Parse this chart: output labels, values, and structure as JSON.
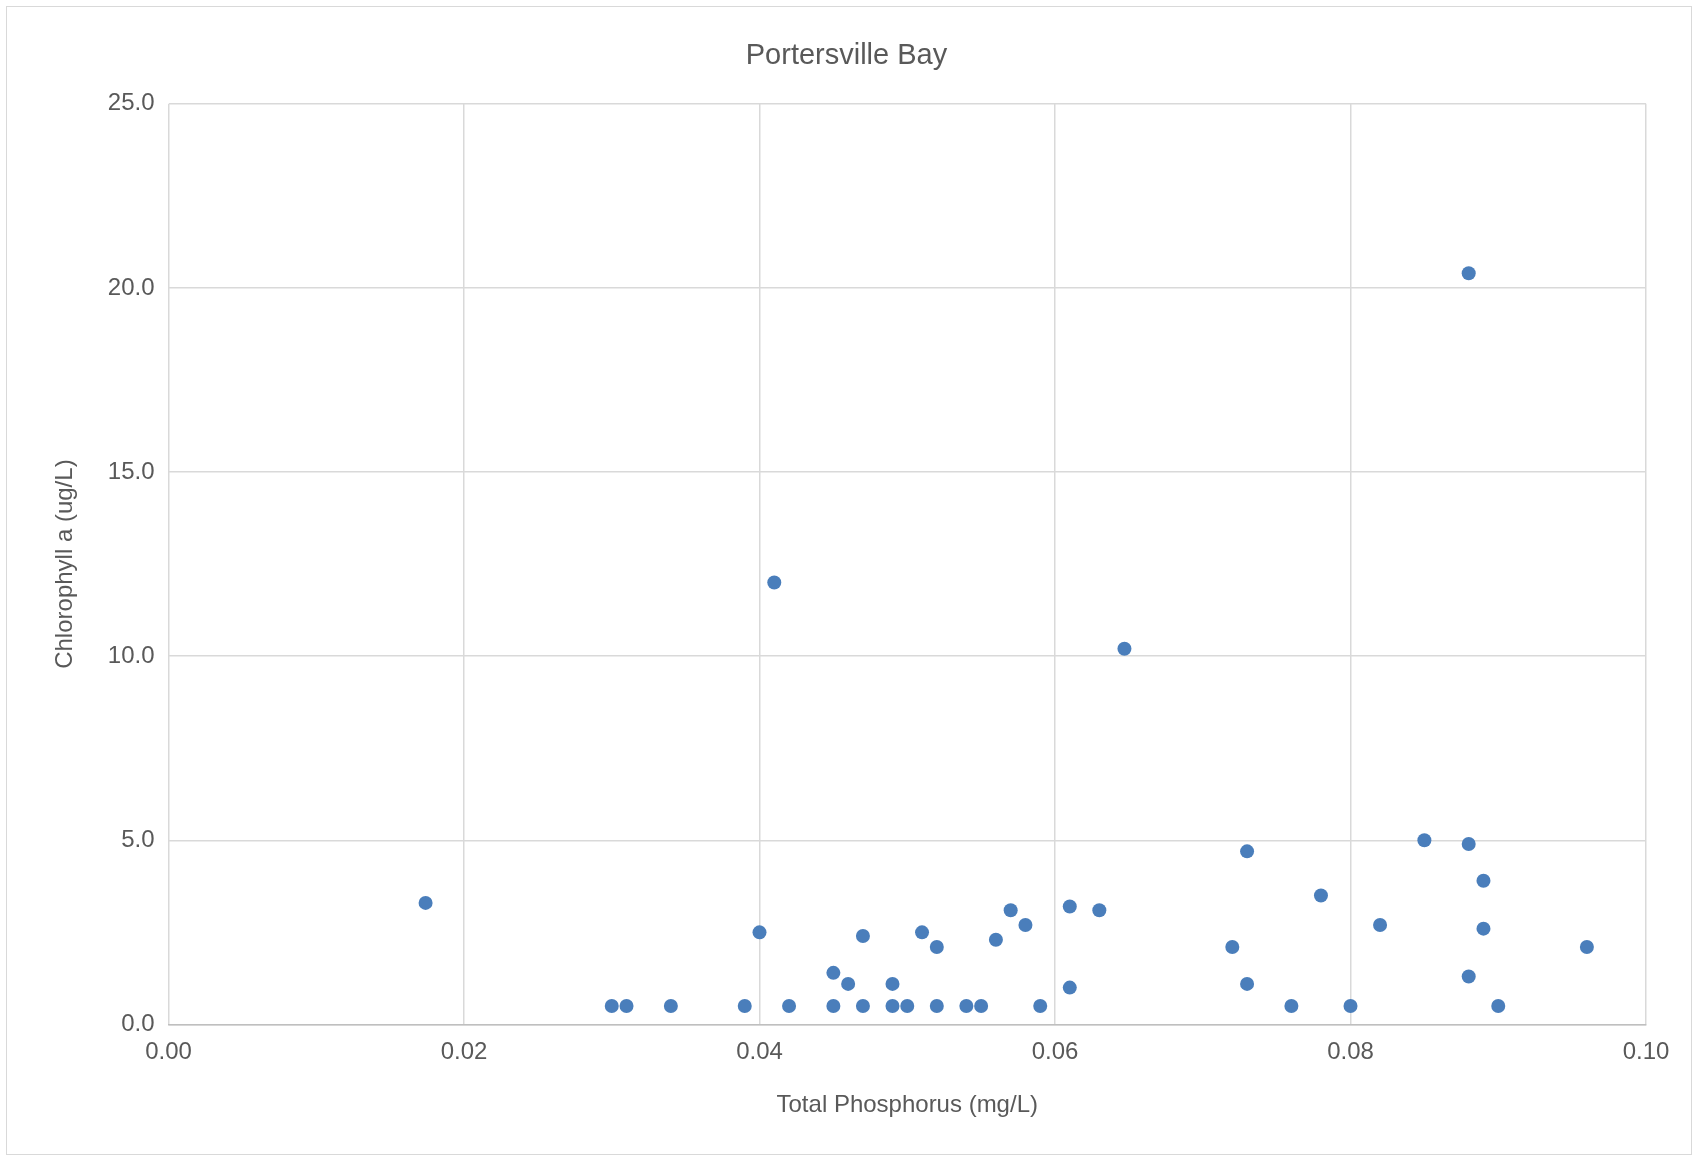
{
  "chart_data": {
    "type": "scatter",
    "title": "Portersville Bay",
    "xlabel": "Total Phosphorus (mg/L)",
    "ylabel": "Chlorophyll a (ug/L)",
    "x": [
      0.0174,
      0.03,
      0.031,
      0.034,
      0.039,
      0.04,
      0.041,
      0.042,
      0.045,
      0.045,
      0.046,
      0.047,
      0.047,
      0.049,
      0.049,
      0.05,
      0.051,
      0.052,
      0.052,
      0.054,
      0.055,
      0.056,
      0.057,
      0.058,
      0.059,
      0.061,
      0.061,
      0.063,
      0.0647,
      0.072,
      0.073,
      0.073,
      0.076,
      0.078,
      0.08,
      0.082,
      0.085,
      0.088,
      0.088,
      0.088,
      0.089,
      0.089,
      0.09,
      0.096
    ],
    "series": [
      {
        "color": "#4a7ebb",
        "values": [
          3.3,
          0.5,
          0.5,
          0.5,
          0.5,
          2.5,
          12.0,
          0.5,
          1.4,
          0.5,
          1.1,
          2.4,
          0.5,
          1.1,
          0.5,
          0.5,
          2.5,
          2.1,
          0.5,
          0.5,
          0.5,
          2.3,
          3.1,
          2.7,
          0.5,
          3.2,
          1.0,
          3.1,
          10.2,
          2.1,
          4.7,
          1.1,
          0.5,
          3.5,
          0.5,
          2.7,
          5.0,
          20.4,
          4.9,
          1.3,
          3.9,
          2.6,
          0.5,
          2.1
        ]
      }
    ],
    "xlim": [
      0,
      0.1
    ],
    "xticks": [
      {
        "value": 0,
        "label": "0.00"
      },
      {
        "value": 0.02,
        "label": "0.02"
      },
      {
        "value": 0.04,
        "label": "0.04"
      },
      {
        "value": 0.06,
        "label": "0.06"
      },
      {
        "value": 0.08,
        "label": "0.08"
      },
      {
        "value": 0.1,
        "label": "0.10"
      }
    ],
    "ylim": [
      0,
      25
    ],
    "yticks": [
      {
        "value": 0,
        "label": "0.0"
      },
      {
        "value": 5,
        "label": "5.0"
      },
      {
        "value": 10,
        "label": "10.0"
      },
      {
        "value": 15,
        "label": "15.0"
      },
      {
        "value": 20,
        "label": "20.0"
      },
      {
        "value": 25,
        "label": "25.0"
      }
    ],
    "grid": true,
    "legend": false,
    "marker": "circle"
  }
}
